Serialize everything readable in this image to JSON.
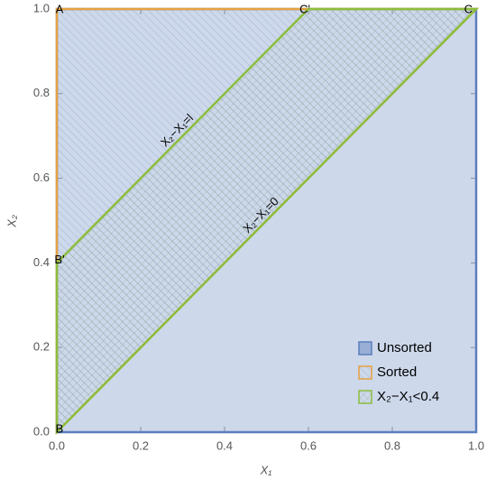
{
  "chart_data": {
    "type": "region",
    "xlabel": "X₁",
    "ylabel": "X₂",
    "xlim": [
      0,
      1
    ],
    "ylim": [
      0,
      1
    ],
    "xticks": [
      {
        "value": 0,
        "label": "0.0"
      },
      0.2,
      0.4,
      0.6,
      0.8,
      {
        "value": 1,
        "label": "1.0"
      }
    ],
    "yticks": [
      {
        "value": 0,
        "label": "0.0"
      },
      0.2,
      0.4,
      0.6,
      0.8,
      {
        "value": 1,
        "label": "1.0"
      }
    ],
    "legend": "lower right",
    "series": [
      {
        "name": "Unsorted",
        "color": "#5b7fbd",
        "x": [
          0,
          0,
          1,
          1
        ],
        "y": [
          0,
          1,
          1,
          0
        ]
      },
      {
        "name": "Sorted",
        "color": "#e6a141",
        "x": [
          0,
          0,
          1
        ],
        "y": [
          0,
          1,
          1
        ]
      },
      {
        "name": "X₂−X₁<0.4",
        "color": "#8cbd3c",
        "x": [
          0,
          0,
          0.6,
          1
        ],
        "y": [
          0,
          0.4,
          1,
          1
        ]
      }
    ],
    "points": [
      {
        "label": "A",
        "x": 0,
        "y": 1
      },
      {
        "label": "B",
        "x": 0,
        "y": 0
      },
      {
        "label": "B'",
        "x": 0,
        "y": 0.4
      },
      {
        "label": "C'",
        "x": 0.6,
        "y": 1
      },
      {
        "label": "C",
        "x": 1,
        "y": 1
      }
    ],
    "annotations": [
      "X₂−X₁=l",
      "X₂−X₁=0"
    ]
  }
}
